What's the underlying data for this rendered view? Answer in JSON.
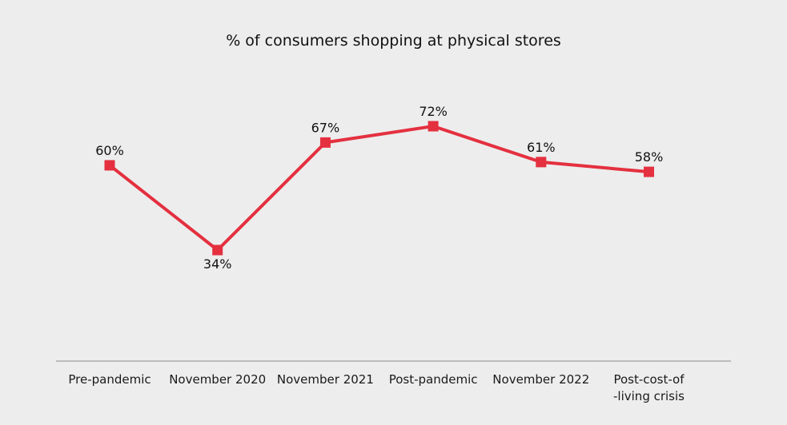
{
  "chart_data": {
    "type": "line",
    "title": "% of consumers shopping at physical stores",
    "categories": [
      "Pre-pandemic",
      "November 2020",
      "November 2021",
      "Post-pandemic",
      "November 2022",
      "Post-cost-of\n-living crisis"
    ],
    "series": [
      {
        "values": [
          60,
          34,
          67,
          72,
          61,
          58
        ],
        "labels": [
          "60%",
          "34%",
          "67%",
          "72%",
          "61%",
          "58%"
        ],
        "color": "#e4303f"
      }
    ],
    "xlabel": "",
    "ylabel": "",
    "ylim": [
      0,
      100
    ],
    "grid": false,
    "legend": "none"
  }
}
